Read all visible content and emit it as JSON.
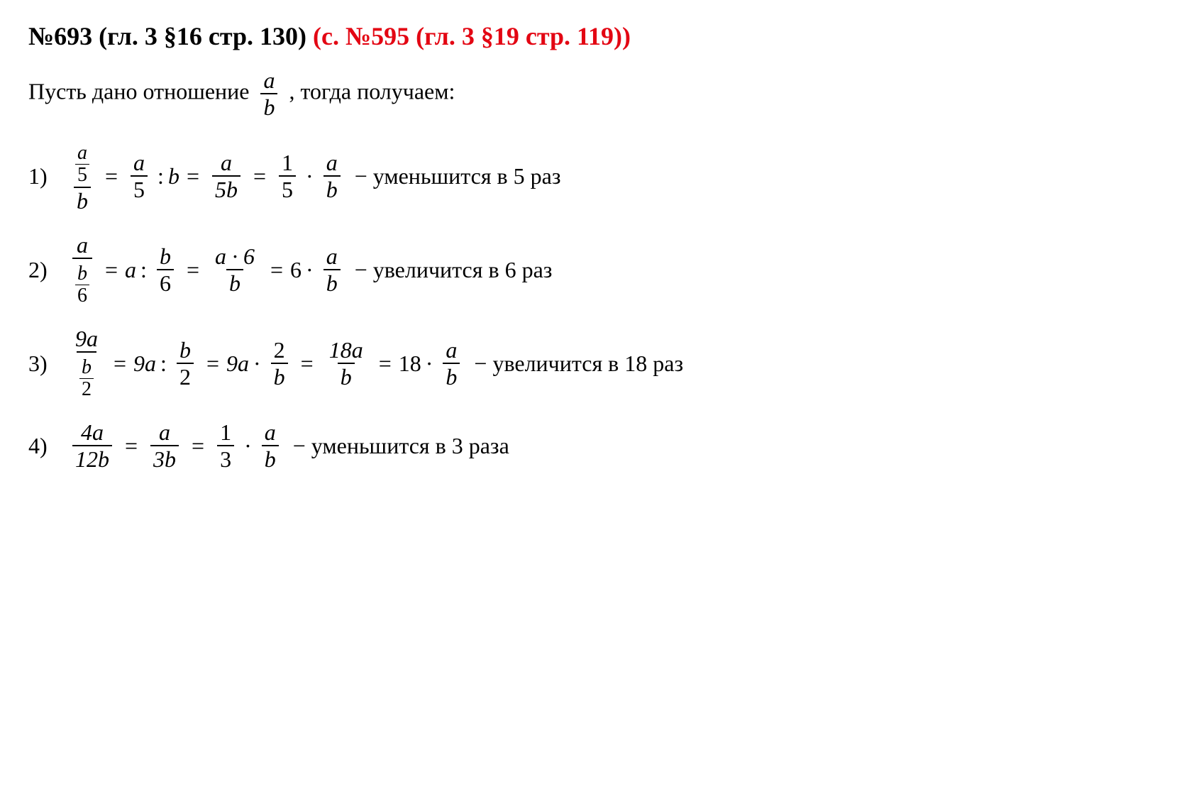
{
  "heading": {
    "black": "№693 (гл. 3 §16 стр. 130)",
    "red": "(с. №595 (гл. 3 §19 стр. 119))"
  },
  "intro": {
    "prefix": "Пусть дано отношение ",
    "frac_top": "a",
    "frac_bot": "b",
    "suffix": ", тогда получаем:"
  },
  "items": [
    {
      "num": "1)",
      "f1_top_top": "a",
      "f1_top_bot": "5",
      "f1_bot": "b",
      "eq1": "=",
      "f2_top": "a",
      "f2_bot": "5",
      "colon": ":",
      "after_colon": "b",
      "eq2": "=",
      "f3_top": "a",
      "f3_bot": "5b",
      "eq3": "=",
      "f4_top": "1",
      "f4_bot": "5",
      "dot": "·",
      "f5_top": "a",
      "f5_bot": "b",
      "tail": "− уменьшится в 5 раз"
    },
    {
      "num": "2)",
      "f1_top": "a",
      "f1_bot_top": "b",
      "f1_bot_bot": "6",
      "eq1": "=",
      "lhs": "a",
      "colon": ":",
      "f2_top": "b",
      "f2_bot": "6",
      "eq2": "=",
      "f3_top": "a · 6",
      "f3_bot": "b",
      "eq3": "=",
      "coef": "6",
      "dot": "·",
      "f5_top": "a",
      "f5_bot": "b",
      "tail": "− увеличится в 6 раз"
    },
    {
      "num": "3)",
      "f1_top": "9a",
      "f1_bot_top": "b",
      "f1_bot_bot": "2",
      "eq1": "=",
      "lhs": "9a",
      "colon": ":",
      "f2_top": "b",
      "f2_bot": "2",
      "eq2": "=",
      "lhs2": "9a",
      "dot2": "·",
      "f3_top": "2",
      "f3_bot": "b",
      "eq3": "=",
      "f4_top": "18a",
      "f4_bot": "b",
      "eq4": "=",
      "coef": "18",
      "dot": "·",
      "f5_top": "a",
      "f5_bot": "b",
      "tail": "− увеличится в 18 раз"
    },
    {
      "num": "4)",
      "f1_top": "4a",
      "f1_bot": "12b",
      "eq1": "=",
      "f2_top": "a",
      "f2_bot": "3b",
      "eq2": "=",
      "f3_top": "1",
      "f3_bot": "3",
      "dot": "·",
      "f4_top": "a",
      "f4_bot": "b",
      "tail": "− уменьшится в 3 раза"
    }
  ],
  "colors": {
    "red": "#e30613",
    "black": "#000000",
    "background": "#ffffff"
  },
  "typography": {
    "heading_fontsize": 36,
    "body_fontsize": 32,
    "font_family": "Times New Roman"
  }
}
